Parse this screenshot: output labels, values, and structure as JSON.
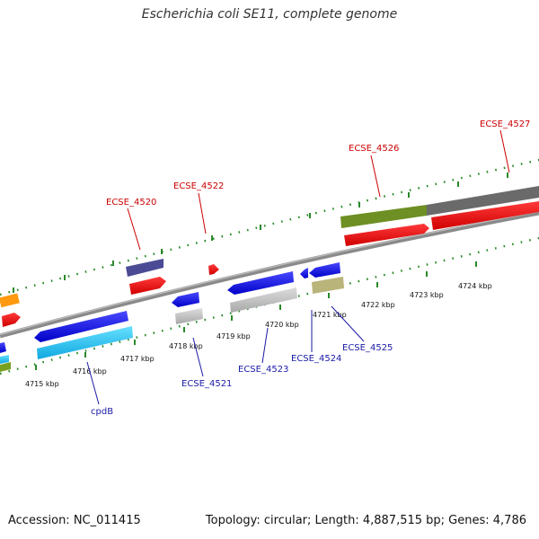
{
  "title": "Escherichia coli SE11, complete genome",
  "footer": {
    "accession": "Accession: NC_011415",
    "topology": "Topology: circular; Length: 4,887,515 bp; Genes: 4,786"
  },
  "colors": {
    "forward_label": "#cc0000",
    "reverse_label": "#1a1aa6",
    "tick": "#2a8a2a",
    "backbone": "#888888"
  },
  "kbp_labels": [
    "4715 kbp",
    "4716 kbp",
    "4717 kbp",
    "4718 kbp",
    "4719 kbp",
    "4720 kbp",
    "4721 kbp",
    "4722 kbp",
    "4723 kbp",
    "4724 kbp"
  ],
  "forward_genes": [
    "ECSE_4520",
    "ECSE_4522",
    "ECSE_4526",
    "ECSE_4527"
  ],
  "reverse_genes": [
    "cpdB",
    "ECSE_4521",
    "ECSE_4523",
    "ECSE_4524",
    "ECSE_4525"
  ]
}
